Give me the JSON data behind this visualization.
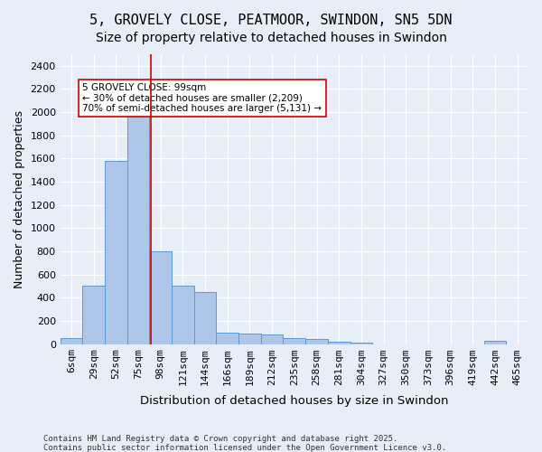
{
  "title_line1": "5, GROVELY CLOSE, PEATMOOR, SWINDON, SN5 5DN",
  "title_line2": "Size of property relative to detached houses in Swindon",
  "xlabel": "Distribution of detached houses by size in Swindon",
  "ylabel": "Number of detached properties",
  "footer_line1": "Contains HM Land Registry data © Crown copyright and database right 2025.",
  "footer_line2": "Contains public sector information licensed under the Open Government Licence v3.0.",
  "bin_labels": [
    "6sqm",
    "29sqm",
    "52sqm",
    "75sqm",
    "98sqm",
    "121sqm",
    "144sqm",
    "166sqm",
    "189sqm",
    "212sqm",
    "235sqm",
    "258sqm",
    "281sqm",
    "304sqm",
    "327sqm",
    "350sqm",
    "373sqm",
    "396sqm",
    "419sqm",
    "442sqm",
    "465sqm"
  ],
  "bar_values": [
    50,
    500,
    1580,
    2050,
    800,
    500,
    450,
    100,
    90,
    80,
    50,
    40,
    20,
    10,
    0,
    0,
    0,
    0,
    0,
    30,
    0
  ],
  "bar_color": "#aec6e8",
  "bar_edge_color": "#5b9bd5",
  "vline_x": 4,
  "vline_color": "#cc0000",
  "annotation_text": "5 GROVELY CLOSE: 99sqm\n← 30% of detached houses are smaller (2,209)\n70% of semi-detached houses are larger (5,131) →",
  "annotation_box_color": "#ffffff",
  "annotation_box_edge": "#cc0000",
  "ylim": [
    0,
    2500
  ],
  "yticks": [
    0,
    200,
    400,
    600,
    800,
    1000,
    1200,
    1400,
    1600,
    1800,
    2000,
    2200,
    2400
  ],
  "background_color": "#e8eef8",
  "plot_bg_color": "#e8eef8",
  "grid_color": "#ffffff",
  "title_fontsize": 11,
  "subtitle_fontsize": 10,
  "axis_label_fontsize": 9,
  "tick_fontsize": 8,
  "figsize": [
    6.0,
    5.0
  ],
  "dpi": 100
}
